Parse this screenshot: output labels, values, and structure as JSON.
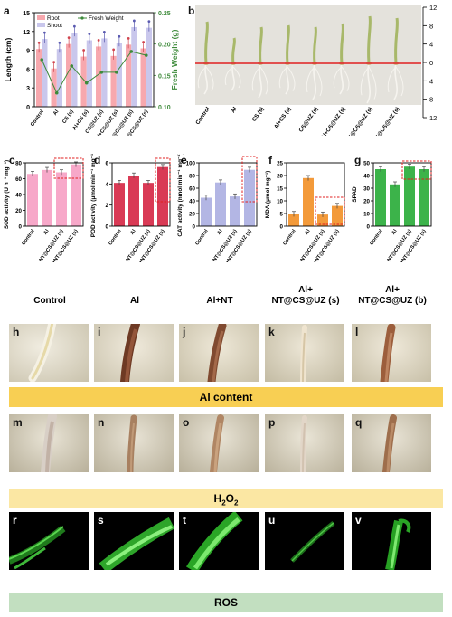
{
  "panels": {
    "a": "a",
    "b": "b",
    "c": "c",
    "d": "d",
    "e": "e",
    "f": "f",
    "g": "g",
    "h": "h",
    "i": "i",
    "j": "j",
    "k": "k",
    "l": "l",
    "m": "m",
    "n": "n",
    "o": "o",
    "p": "p",
    "q": "q",
    "r": "r",
    "s": "s",
    "t": "t",
    "u": "u",
    "v": "v"
  },
  "chart_data": [
    {
      "id": "a",
      "type": "bar",
      "categories": [
        "Control",
        "Al",
        "CS (s)",
        "Al+CS (s)",
        "CS@UZ (s)",
        "Al+CS@UZ (s)",
        "NT@CS@UZ (s)",
        "Al+NT@CS@UZ (s)"
      ],
      "series": [
        {
          "name": "Root",
          "values": [
            9.2,
            6.1,
            10.0,
            8.0,
            9.6,
            8.1,
            9.9,
            9.3
          ]
        },
        {
          "name": "Shoot",
          "values": [
            10.8,
            9.2,
            11.8,
            10.6,
            10.9,
            10.2,
            12.7,
            12.6
          ]
        },
        {
          "name": "Fresh Weight",
          "values": [
            0.175,
            0.122,
            0.165,
            0.138,
            0.155,
            0.155,
            0.188,
            0.182
          ]
        }
      ],
      "ylabel": "Length (cm)",
      "y2label": "Fresh Weight (g)",
      "ylim": [
        0,
        15
      ],
      "y2lim": [
        0.1,
        0.25
      ],
      "yticks": [
        "0",
        "3",
        "6",
        "9",
        "12",
        "15"
      ],
      "y2ticks": [
        "0.10",
        "0.15",
        "0.20",
        "0.25"
      ],
      "legend": "top-left"
    },
    {
      "id": "c",
      "type": "bar",
      "categories": [
        "Control",
        "Al",
        "NT@CS@UZ (s)",
        "Al+NT@CS@UZ (s)"
      ],
      "values": [
        66,
        71,
        68,
        78
      ],
      "ylabel": "SOD activity (U h⁻¹ mg⁻¹)",
      "ylim": [
        0,
        80
      ],
      "yticks": [
        "0",
        "20",
        "40",
        "60",
        "80"
      ],
      "color": "#f7a8c9"
    },
    {
      "id": "d",
      "type": "bar",
      "categories": [
        "Control",
        "Al",
        "NT@CS@UZ (s)",
        "Al+NT@CS@UZ (s)"
      ],
      "values": [
        4.1,
        4.8,
        4.1,
        5.6
      ],
      "ylabel": "POD activity (μmol min⁻¹ mg⁻¹)",
      "ylim": [
        0,
        6
      ],
      "yticks": [
        "0",
        "2",
        "4",
        "6"
      ],
      "color": "#d93a55"
    },
    {
      "id": "e",
      "type": "bar",
      "categories": [
        "Control",
        "Al",
        "NT@CS@UZ (s)",
        "Al+NT@CS@UZ (s)"
      ],
      "values": [
        45,
        69,
        47,
        89
      ],
      "ylabel": "CAT activity (nmol min⁻¹ mg⁻¹)",
      "ylim": [
        0,
        100
      ],
      "yticks": [
        "0",
        "20",
        "40",
        "60",
        "80",
        "100"
      ],
      "color": "#b3b6e4"
    },
    {
      "id": "f",
      "type": "bar",
      "categories": [
        "Control",
        "Al",
        "NT@CS@UZ (s)",
        "Al+NT@CS@UZ (s)"
      ],
      "values": [
        4.8,
        19,
        4.6,
        8.0
      ],
      "ylabel": "MDA (μmol mg⁻¹)",
      "ylim": [
        0,
        25
      ],
      "yticks": [
        "0",
        "5",
        "10",
        "15",
        "20",
        "25"
      ],
      "color": "#f39a3a"
    },
    {
      "id": "g",
      "type": "bar",
      "categories": [
        "Control",
        "Al",
        "NT@CS@UZ (s)",
        "Al+NT@CS@UZ (s)"
      ],
      "values": [
        45,
        33,
        47,
        45
      ],
      "ylabel": "SPAD",
      "ylim": [
        0,
        50
      ],
      "yticks": [
        "0",
        "10",
        "20",
        "30",
        "40",
        "50"
      ],
      "color": "#3cb34a"
    }
  ],
  "panel_b": {
    "labels": [
      "Control",
      "Al",
      "CS (s)",
      "Al+CS (s)",
      "CS@UZ (s)",
      "Al+CS@UZ (s)",
      "NT@CS@UZ (s)",
      "Al+NT@CS@UZ (s)"
    ],
    "scale_ticks": [
      "12",
      "8",
      "4",
      "0",
      "4",
      "8",
      "12"
    ]
  },
  "columns": [
    "Control",
    "Al",
    "Al+NT",
    "Al+\nNT@CS@UZ (s)",
    "Al+\nNT@CS@UZ (b)"
  ],
  "bands": {
    "al": "Al content",
    "h2o2_main": "H",
    "h2o2_sub1": "2",
    "h2o2_mid": "O",
    "h2o2_sub2": "2",
    "ros": "ROS"
  },
  "colors": {
    "root": "#f7a8ae",
    "shoot": "#c9c7ec",
    "fresh": "#3d8a3a",
    "band_yellow": "#f8cf53",
    "band_light": "#fbe7a3",
    "band_green": "#c2dfc0",
    "highlight": "#e02020"
  }
}
